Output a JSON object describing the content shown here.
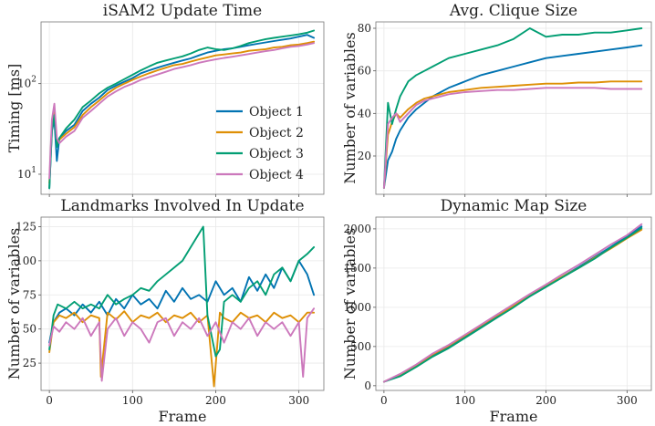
{
  "colors": {
    "object1": "#0173b2",
    "object2": "#de8f05",
    "object3": "#029e73",
    "object4": "#cc78bc"
  },
  "chart_data": [
    {
      "type": "line",
      "title": "iSAM2 Update Time",
      "xlabel": "",
      "ylabel": "Timing [ms]",
      "yscale": "log",
      "xlim": [
        -10,
        330
      ],
      "ylim": [
        6,
        480
      ],
      "yticks": [
        10,
        100
      ],
      "yticklabels": [
        "10¹",
        "10²"
      ],
      "xticks": [
        0,
        100,
        200,
        300
      ],
      "xticklabels": [],
      "legend": "lower-right",
      "series": [
        {
          "name": "Object 1",
          "color": "#0173b2",
          "x": [
            0,
            3,
            6,
            9,
            12,
            20,
            30,
            40,
            50,
            60,
            70,
            80,
            90,
            100,
            110,
            120,
            130,
            140,
            150,
            160,
            170,
            180,
            190,
            200,
            210,
            220,
            230,
            240,
            250,
            260,
            270,
            280,
            290,
            300,
            310,
            318
          ],
          "values": [
            7,
            30,
            40,
            14,
            25,
            30,
            35,
            50,
            60,
            70,
            85,
            95,
            105,
            115,
            130,
            140,
            150,
            160,
            170,
            180,
            190,
            205,
            220,
            230,
            240,
            245,
            255,
            265,
            275,
            285,
            295,
            305,
            315,
            330,
            345,
            320
          ]
        },
        {
          "name": "Object 2",
          "color": "#de8f05",
          "x": [
            0,
            3,
            6,
            9,
            12,
            20,
            30,
            40,
            50,
            60,
            70,
            80,
            90,
            100,
            110,
            120,
            130,
            140,
            150,
            160,
            170,
            180,
            190,
            200,
            210,
            220,
            230,
            240,
            250,
            260,
            270,
            280,
            290,
            300,
            310,
            318
          ],
          "values": [
            8,
            35,
            50,
            22,
            24,
            28,
            33,
            45,
            55,
            65,
            78,
            90,
            100,
            110,
            120,
            130,
            140,
            150,
            160,
            165,
            175,
            185,
            195,
            205,
            210,
            215,
            220,
            230,
            235,
            240,
            250,
            255,
            265,
            270,
            280,
            290
          ]
        },
        {
          "name": "Object 3",
          "color": "#029e73",
          "x": [
            0,
            3,
            6,
            9,
            12,
            20,
            30,
            40,
            50,
            60,
            70,
            80,
            90,
            100,
            110,
            120,
            130,
            140,
            150,
            160,
            170,
            180,
            190,
            200,
            210,
            220,
            230,
            240,
            250,
            260,
            270,
            280,
            290,
            300,
            310,
            318
          ],
          "values": [
            7,
            30,
            45,
            20,
            25,
            32,
            40,
            55,
            65,
            78,
            90,
            100,
            112,
            125,
            140,
            155,
            170,
            180,
            190,
            200,
            215,
            235,
            250,
            240,
            235,
            245,
            260,
            280,
            295,
            310,
            320,
            330,
            340,
            350,
            365,
            385
          ]
        },
        {
          "name": "Object 4",
          "color": "#cc78bc",
          "x": [
            0,
            3,
            6,
            9,
            12,
            20,
            30,
            40,
            50,
            60,
            70,
            80,
            90,
            100,
            110,
            120,
            130,
            140,
            150,
            160,
            170,
            180,
            190,
            200,
            210,
            220,
            230,
            240,
            250,
            260,
            270,
            280,
            290,
            300,
            310,
            318
          ],
          "values": [
            9,
            40,
            60,
            25,
            22,
            26,
            30,
            42,
            50,
            60,
            72,
            82,
            92,
            100,
            110,
            118,
            126,
            135,
            145,
            152,
            160,
            170,
            178,
            185,
            192,
            198,
            205,
            212,
            220,
            228,
            235,
            245,
            255,
            260,
            270,
            280
          ]
        }
      ]
    },
    {
      "type": "line",
      "title": "Avg. Clique Size",
      "xlabel": "",
      "ylabel": "Number of variables",
      "yscale": "linear",
      "xlim": [
        -10,
        330
      ],
      "ylim": [
        2,
        83
      ],
      "yticks": [
        20,
        40,
        60,
        80
      ],
      "yticklabels": [
        "20",
        "40",
        "60",
        "80"
      ],
      "xticks": [
        0,
        100,
        200,
        300
      ],
      "xticklabels": [],
      "series": [
        {
          "name": "Object 1",
          "color": "#0173b2",
          "x": [
            0,
            5,
            10,
            15,
            20,
            30,
            40,
            50,
            60,
            70,
            80,
            100,
            120,
            140,
            160,
            180,
            200,
            220,
            240,
            260,
            280,
            300,
            318
          ],
          "values": [
            5,
            18,
            22,
            28,
            32,
            38,
            42,
            45,
            48,
            50,
            52,
            55,
            58,
            60,
            62,
            64,
            66,
            67,
            68,
            69,
            70,
            71,
            72
          ]
        },
        {
          "name": "Object 2",
          "color": "#de8f05",
          "x": [
            0,
            5,
            10,
            15,
            20,
            30,
            40,
            50,
            60,
            70,
            80,
            100,
            120,
            140,
            160,
            180,
            200,
            220,
            240,
            260,
            280,
            300,
            318
          ],
          "values": [
            5,
            30,
            36,
            40,
            38,
            42,
            45,
            47,
            48,
            49,
            50,
            51,
            52,
            52.5,
            53,
            53.5,
            54,
            54,
            54.5,
            54.5,
            55,
            55,
            55
          ]
        },
        {
          "name": "Object 3",
          "color": "#029e73",
          "x": [
            0,
            5,
            10,
            15,
            20,
            30,
            40,
            50,
            60,
            70,
            80,
            100,
            120,
            140,
            160,
            180,
            200,
            220,
            240,
            260,
            280,
            300,
            318
          ],
          "values": [
            5,
            45,
            35,
            42,
            48,
            55,
            58,
            60,
            62,
            64,
            66,
            68,
            70,
            72,
            75,
            80,
            76,
            77,
            77,
            78,
            78,
            79,
            80
          ]
        },
        {
          "name": "Object 4",
          "color": "#cc78bc",
          "x": [
            0,
            5,
            10,
            15,
            20,
            30,
            40,
            50,
            60,
            70,
            80,
            100,
            120,
            140,
            160,
            180,
            200,
            220,
            240,
            260,
            280,
            300,
            318
          ],
          "values": [
            5,
            35,
            38,
            40,
            36,
            40,
            44,
            46,
            47,
            48,
            49,
            50,
            50.5,
            51,
            51,
            51.5,
            52,
            52,
            52,
            52,
            51.5,
            51.5,
            51.5
          ]
        }
      ]
    },
    {
      "type": "line",
      "title": "Landmarks Involved In Update",
      "xlabel": "Frame",
      "ylabel": "Number of variables",
      "yscale": "linear",
      "xlim": [
        -10,
        330
      ],
      "ylim": [
        5,
        132
      ],
      "yticks": [
        25,
        50,
        75,
        100,
        125
      ],
      "yticklabels": [
        "25",
        "50",
        "75",
        "100",
        "125"
      ],
      "xticks": [
        0,
        100,
        200,
        300
      ],
      "xticklabels": [
        "0",
        "100",
        "200",
        "300"
      ],
      "series": [
        {
          "name": "Object 1",
          "color": "#0173b2",
          "x": [
            0,
            5,
            12,
            20,
            30,
            40,
            50,
            60,
            70,
            80,
            90,
            100,
            110,
            120,
            130,
            140,
            150,
            160,
            170,
            180,
            190,
            200,
            210,
            220,
            230,
            240,
            250,
            260,
            270,
            280,
            290,
            300,
            310,
            318
          ],
          "values": [
            40,
            55,
            62,
            65,
            60,
            68,
            62,
            70,
            60,
            72,
            65,
            75,
            68,
            72,
            65,
            78,
            70,
            80,
            72,
            75,
            70,
            85,
            75,
            80,
            70,
            88,
            78,
            90,
            80,
            95,
            85,
            100,
            90,
            75
          ]
        },
        {
          "name": "Object 2",
          "color": "#de8f05",
          "x": [
            0,
            5,
            12,
            20,
            30,
            40,
            50,
            60,
            62,
            70,
            80,
            90,
            100,
            110,
            120,
            130,
            140,
            150,
            160,
            170,
            180,
            190,
            198,
            205,
            210,
            220,
            230,
            240,
            250,
            260,
            270,
            280,
            290,
            300,
            310,
            318
          ],
          "values": [
            33,
            55,
            60,
            58,
            62,
            55,
            60,
            58,
            15,
            62,
            57,
            63,
            55,
            60,
            58,
            62,
            55,
            60,
            58,
            62,
            55,
            60,
            8,
            62,
            58,
            55,
            62,
            58,
            60,
            55,
            62,
            58,
            60,
            55,
            62,
            62
          ]
        },
        {
          "name": "Object 3",
          "color": "#029e73",
          "x": [
            0,
            5,
            10,
            20,
            30,
            40,
            50,
            60,
            70,
            80,
            90,
            100,
            110,
            120,
            130,
            140,
            150,
            160,
            170,
            180,
            185,
            190,
            200,
            205,
            210,
            220,
            230,
            240,
            250,
            260,
            270,
            280,
            290,
            300,
            310,
            318
          ],
          "values": [
            35,
            60,
            68,
            65,
            70,
            65,
            68,
            65,
            75,
            68,
            72,
            75,
            80,
            78,
            85,
            90,
            95,
            100,
            110,
            120,
            125,
            60,
            30,
            35,
            70,
            75,
            70,
            80,
            85,
            75,
            90,
            95,
            85,
            100,
            105,
            110
          ]
        },
        {
          "name": "Object 4",
          "color": "#cc78bc",
          "x": [
            0,
            5,
            12,
            20,
            30,
            40,
            50,
            60,
            63,
            70,
            80,
            90,
            100,
            110,
            120,
            130,
            140,
            150,
            160,
            170,
            180,
            190,
            200,
            210,
            220,
            230,
            240,
            250,
            260,
            270,
            280,
            290,
            300,
            305,
            310,
            318
          ],
          "values": [
            38,
            52,
            48,
            55,
            50,
            58,
            45,
            55,
            12,
            50,
            58,
            45,
            55,
            50,
            40,
            55,
            58,
            45,
            55,
            50,
            58,
            45,
            55,
            40,
            55,
            50,
            58,
            45,
            55,
            50,
            55,
            45,
            55,
            15,
            58,
            65
          ]
        }
      ]
    },
    {
      "type": "line",
      "title": "Dynamic Map Size",
      "xlabel": "Frame",
      "ylabel": "Number of variables",
      "yscale": "linear",
      "xlim": [
        -10,
        330
      ],
      "ylim": [
        -60,
        2150
      ],
      "yticks": [
        0,
        500,
        1000,
        1500,
        2000
      ],
      "yticklabels": [
        "0",
        "500",
        "1000",
        "1500",
        "2000"
      ],
      "xticks": [
        0,
        100,
        200,
        300
      ],
      "xticklabels": [
        "0",
        "100",
        "200",
        "300"
      ],
      "series": [
        {
          "name": "Object 1",
          "color": "#0173b2",
          "x": [
            0,
            20,
            40,
            60,
            80,
            100,
            120,
            140,
            160,
            180,
            200,
            220,
            240,
            260,
            280,
            300,
            318
          ],
          "values": [
            50,
            130,
            250,
            380,
            490,
            620,
            760,
            880,
            1010,
            1140,
            1260,
            1390,
            1510,
            1640,
            1770,
            1910,
            2030
          ]
        },
        {
          "name": "Object 2",
          "color": "#de8f05",
          "x": [
            0,
            20,
            40,
            60,
            80,
            100,
            120,
            140,
            160,
            180,
            200,
            220,
            240,
            260,
            280,
            300,
            318
          ],
          "values": [
            50,
            140,
            260,
            400,
            510,
            640,
            770,
            900,
            1020,
            1150,
            1270,
            1390,
            1500,
            1630,
            1750,
            1880,
            1990
          ]
        },
        {
          "name": "Object 3",
          "color": "#029e73",
          "x": [
            0,
            20,
            40,
            60,
            80,
            100,
            120,
            140,
            160,
            180,
            200,
            220,
            240,
            260,
            280,
            300,
            318
          ],
          "values": [
            50,
            120,
            240,
            370,
            480,
            610,
            740,
            870,
            1000,
            1140,
            1260,
            1380,
            1500,
            1620,
            1760,
            1890,
            2010
          ]
        },
        {
          "name": "Object 4",
          "color": "#cc78bc",
          "x": [
            0,
            20,
            40,
            60,
            80,
            100,
            120,
            140,
            160,
            180,
            200,
            220,
            240,
            260,
            280,
            300,
            318
          ],
          "values": [
            50,
            150,
            270,
            410,
            520,
            650,
            780,
            910,
            1040,
            1170,
            1290,
            1420,
            1540,
            1670,
            1800,
            1920,
            2060
          ]
        }
      ]
    }
  ]
}
